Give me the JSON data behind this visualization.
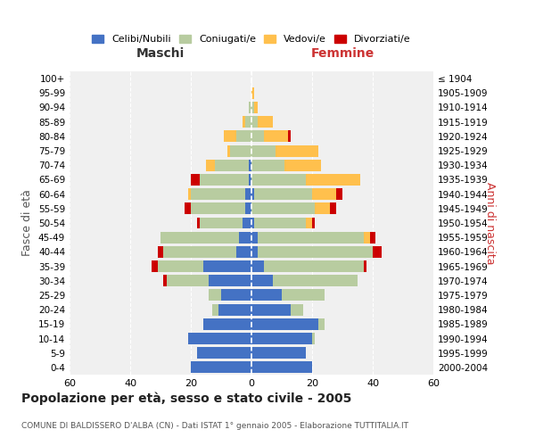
{
  "age_groups": [
    "0-4",
    "5-9",
    "10-14",
    "15-19",
    "20-24",
    "25-29",
    "30-34",
    "35-39",
    "40-44",
    "45-49",
    "50-54",
    "55-59",
    "60-64",
    "65-69",
    "70-74",
    "75-79",
    "80-84",
    "85-89",
    "90-94",
    "95-99",
    "100+"
  ],
  "birth_years": [
    "2000-2004",
    "1995-1999",
    "1990-1994",
    "1985-1989",
    "1980-1984",
    "1975-1979",
    "1970-1974",
    "1965-1969",
    "1960-1964",
    "1955-1959",
    "1950-1954",
    "1945-1949",
    "1940-1944",
    "1935-1939",
    "1930-1934",
    "1925-1929",
    "1920-1924",
    "1915-1919",
    "1910-1914",
    "1905-1909",
    "≤ 1904"
  ],
  "male": {
    "celibi": [
      20,
      18,
      21,
      16,
      11,
      10,
      14,
      16,
      5,
      4,
      3,
      2,
      2,
      1,
      1,
      0,
      0,
      0,
      0,
      0,
      0
    ],
    "coniugati": [
      0,
      0,
      0,
      0,
      2,
      4,
      14,
      15,
      24,
      26,
      14,
      18,
      18,
      16,
      11,
      7,
      5,
      2,
      1,
      0,
      0
    ],
    "vedovi": [
      0,
      0,
      0,
      0,
      0,
      0,
      0,
      0,
      0,
      0,
      0,
      0,
      1,
      0,
      3,
      1,
      4,
      1,
      0,
      0,
      0
    ],
    "divorziati": [
      0,
      0,
      0,
      0,
      0,
      0,
      1,
      2,
      2,
      0,
      1,
      2,
      0,
      3,
      0,
      0,
      0,
      0,
      0,
      0,
      0
    ]
  },
  "female": {
    "nubili": [
      20,
      18,
      20,
      22,
      13,
      10,
      7,
      4,
      2,
      2,
      1,
      0,
      1,
      0,
      0,
      0,
      0,
      0,
      0,
      0,
      0
    ],
    "coniugate": [
      0,
      0,
      1,
      2,
      4,
      14,
      28,
      33,
      38,
      35,
      17,
      21,
      19,
      18,
      11,
      8,
      4,
      2,
      1,
      0,
      0
    ],
    "vedove": [
      0,
      0,
      0,
      0,
      0,
      0,
      0,
      0,
      0,
      2,
      2,
      5,
      8,
      18,
      12,
      14,
      8,
      5,
      1,
      1,
      0
    ],
    "divorziate": [
      0,
      0,
      0,
      0,
      0,
      0,
      0,
      1,
      3,
      2,
      1,
      2,
      2,
      0,
      0,
      0,
      1,
      0,
      0,
      0,
      0
    ]
  },
  "colors": {
    "celibi": "#4472c4",
    "coniugati": "#b8cca0",
    "vedovi": "#ffc04d",
    "divorziati": "#cc0000"
  },
  "xlim": 60,
  "title": "Popolazione per età, sesso e stato civile - 2005",
  "subtitle": "COMUNE DI BALDISSERO D'ALBA (CN) - Dati ISTAT 1° gennaio 2005 - Elaborazione TUTTITALIA.IT",
  "xlabel_left": "Maschi",
  "xlabel_right": "Femmine",
  "ylabel_left": "Fasce di età",
  "ylabel_right": "Anni di nascita",
  "legend_labels": [
    "Celibi/Nubili",
    "Coniugati/e",
    "Vedovi/e",
    "Divorziati/e"
  ],
  "bg_color": "#f0f0f0",
  "grid_color": "#cccccc"
}
